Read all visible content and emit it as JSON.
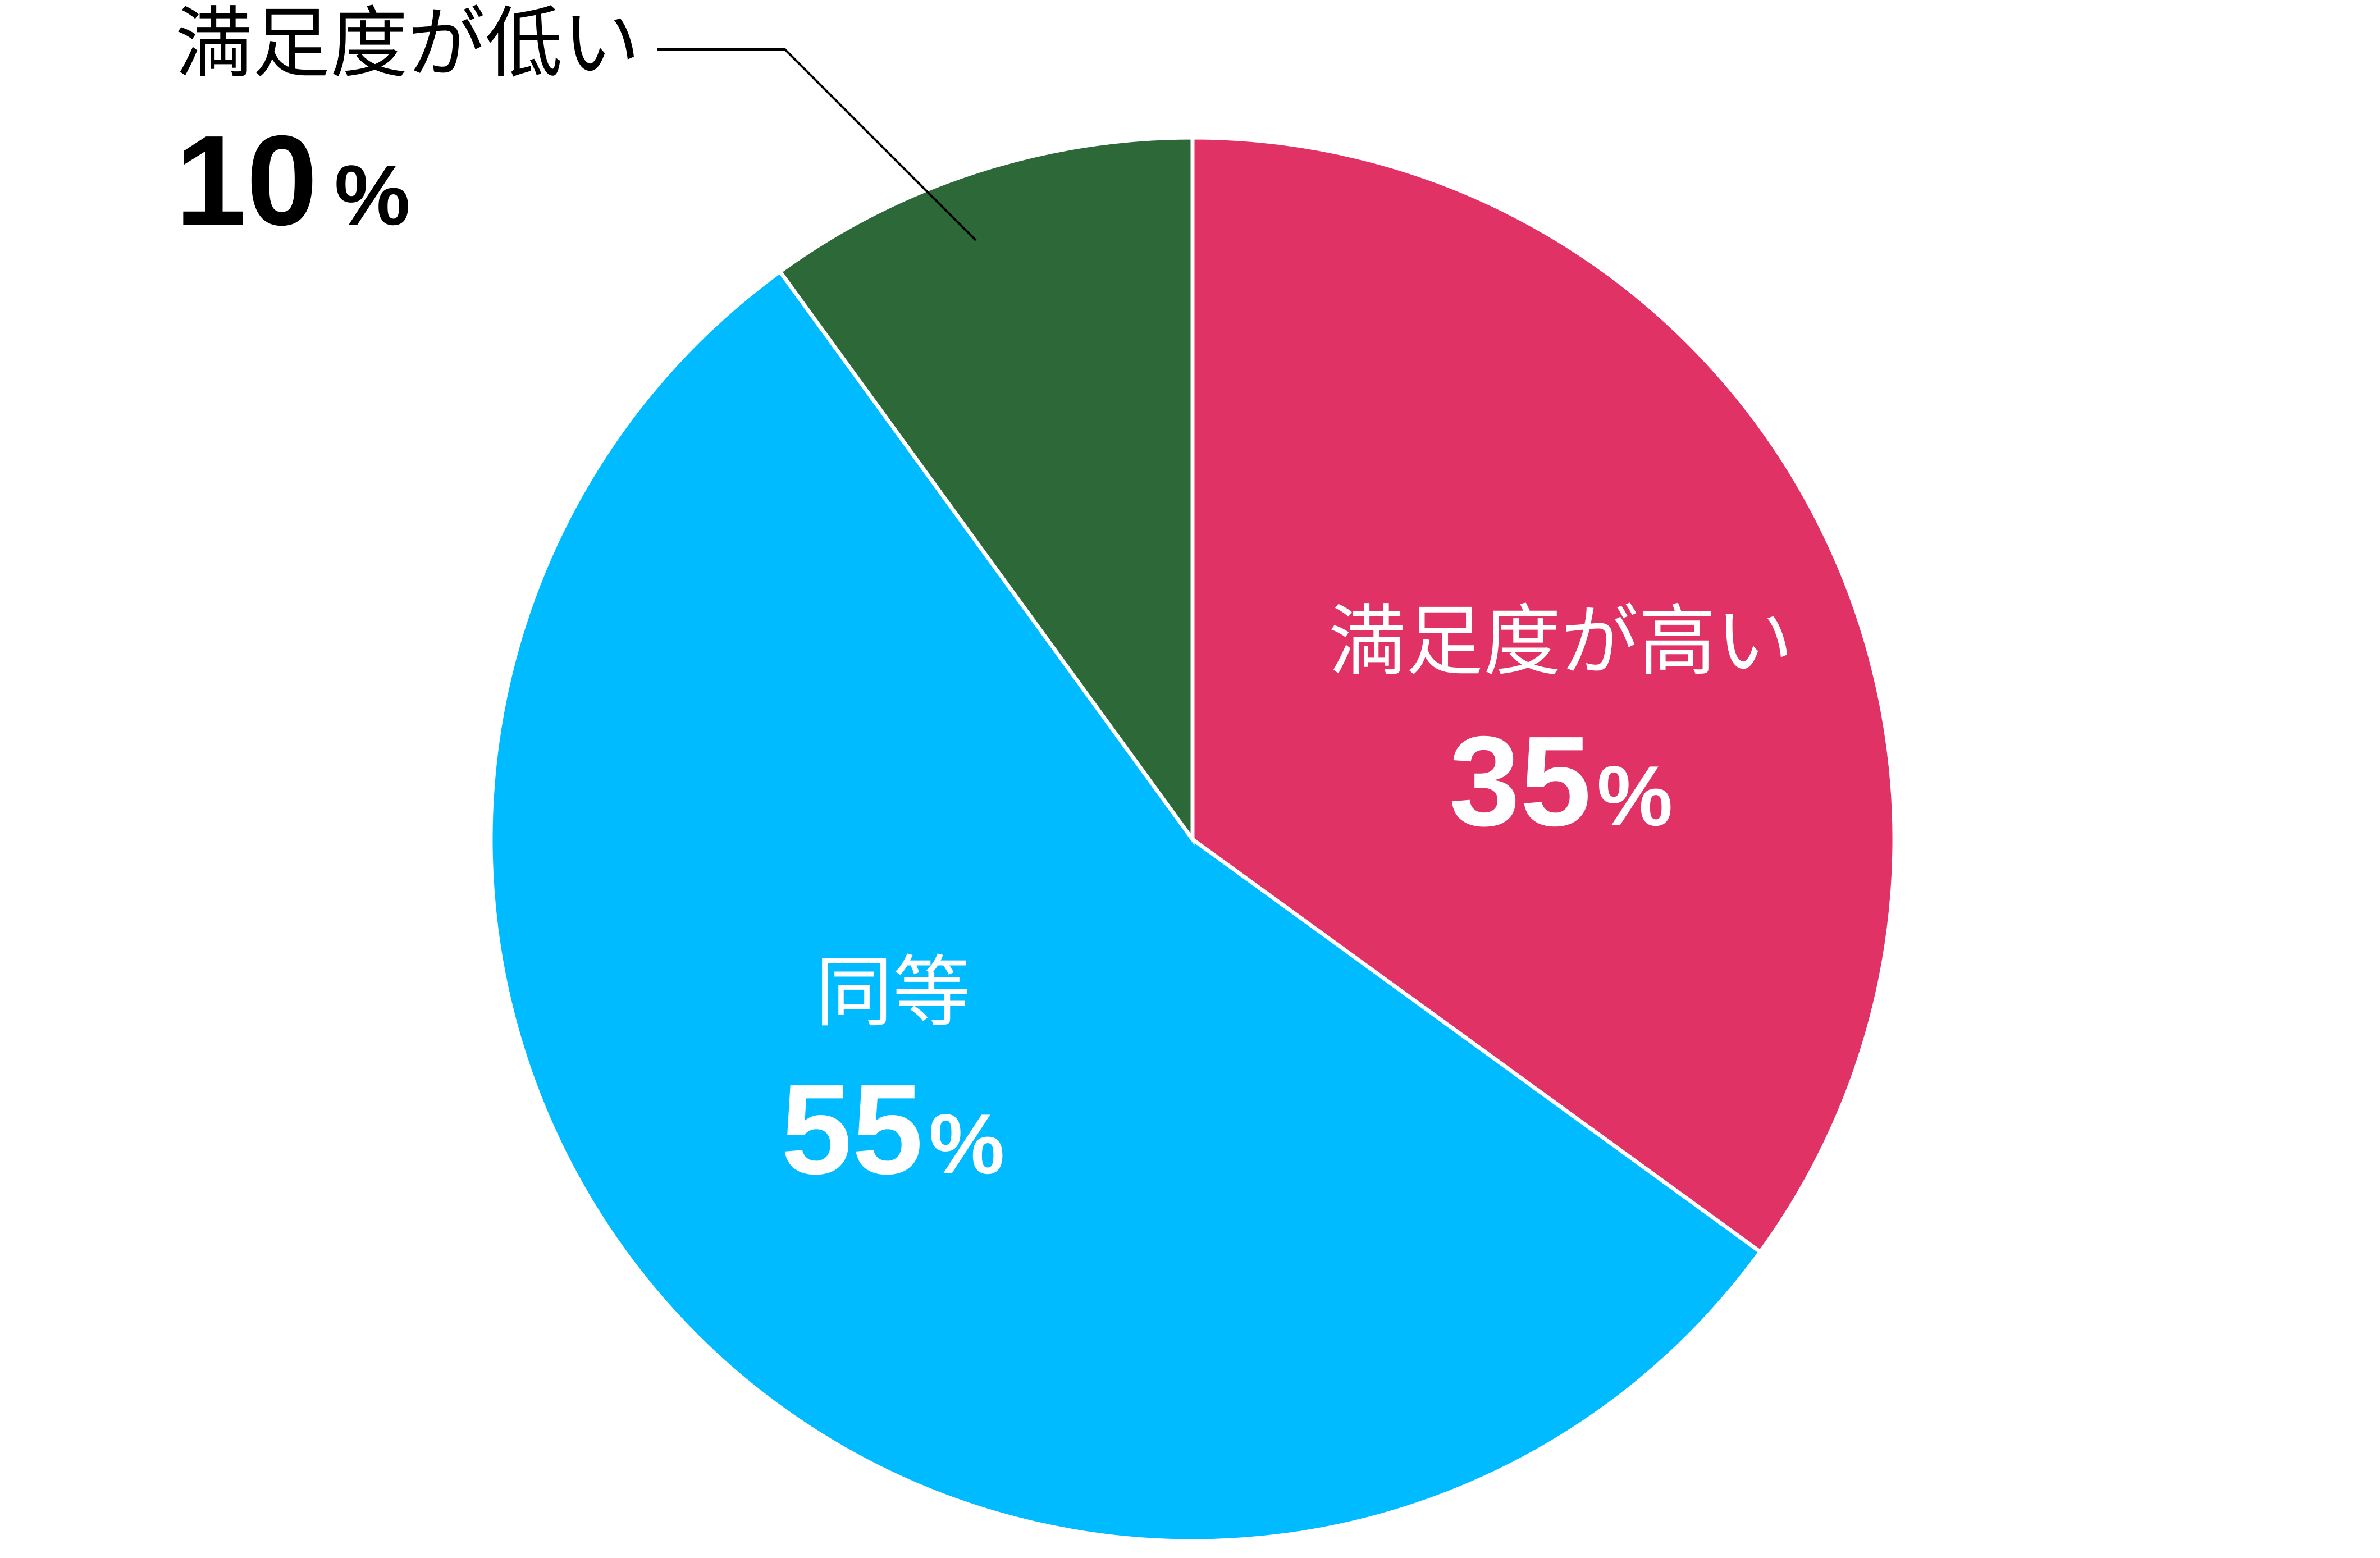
{
  "chart_data": {
    "type": "pie",
    "slices": [
      {
        "label": "満足度が高い",
        "value": 35,
        "value_label": "35",
        "unit": "%",
        "color": "#E03265",
        "label_color": "#ffffff"
      },
      {
        "label": "同等",
        "value": 55,
        "value_label": "55",
        "unit": "%",
        "color": "#00BBFF",
        "label_color": "#ffffff"
      },
      {
        "label": "満足度が低い",
        "value": 10,
        "value_label": "10",
        "unit": "%",
        "color": "#2D6838",
        "label_color": "#000000"
      }
    ],
    "start_angle": "12 o'clock",
    "direction": "clockwise",
    "slice_border_color": "#ffffff",
    "leader_line_color": "#000000"
  }
}
